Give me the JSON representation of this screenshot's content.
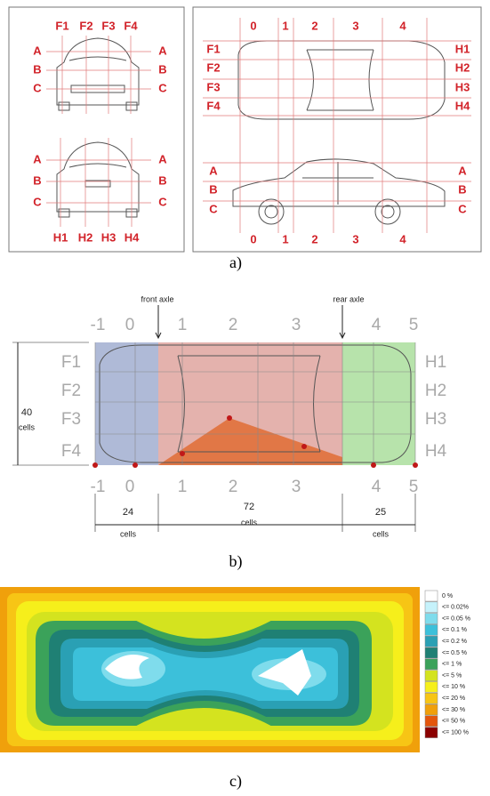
{
  "panel_a": {
    "front_view": {
      "columns": [
        "F1",
        "F2",
        "F3",
        "F4"
      ],
      "rows": [
        "A",
        "B",
        "C"
      ]
    },
    "rear_view": {
      "columns": [
        "H1",
        "H2",
        "H3",
        "H4"
      ],
      "rows": [
        "A",
        "B",
        "C"
      ]
    },
    "top_view": {
      "columns": [
        "0",
        "1",
        "2",
        "3",
        "4"
      ],
      "rows_left": [
        "F1",
        "F2",
        "F3",
        "F4"
      ],
      "rows_right": [
        "H1",
        "H2",
        "H3",
        "H4"
      ]
    },
    "side_view": {
      "columns": [
        "0",
        "1",
        "2",
        "3",
        "4"
      ],
      "rows": [
        "A",
        "B",
        "C"
      ]
    },
    "caption": "a)"
  },
  "panel_b": {
    "front_label": "front axle",
    "rear_label": "rear axle",
    "columns": [
      "-1",
      "0",
      "1",
      "2",
      "3",
      "4",
      "5"
    ],
    "rows_left": [
      "F1",
      "F2",
      "F3",
      "F4"
    ],
    "rows_right": [
      "H1",
      "H2",
      "H3",
      "H4"
    ],
    "height": {
      "count": "40",
      "unit": "cells"
    },
    "widths": [
      {
        "count": "24",
        "unit": "cells"
      },
      {
        "count": "72",
        "unit": "cells"
      },
      {
        "count": "25",
        "unit": "cells"
      }
    ],
    "caption": "b)"
  },
  "panel_c": {
    "legend": [
      {
        "label": "0 %",
        "color": "#ffffff"
      },
      {
        "label": "<= 0.02%",
        "color": "#c6f2fb"
      },
      {
        "label": "<= 0.05 %",
        "color": "#7fdcec"
      },
      {
        "label": "<= 0.1 %",
        "color": "#3cc0da"
      },
      {
        "label": "<= 0.2 %",
        "color": "#2aa0b4"
      },
      {
        "label": "<= 0.5 %",
        "color": "#1f8074"
      },
      {
        "label": "<= 1 %",
        "color": "#3ba25a"
      },
      {
        "label": "<= 5 %",
        "color": "#d4e31f"
      },
      {
        "label": "<= 10 %",
        "color": "#f6ef1b"
      },
      {
        "label": "<= 20 %",
        "color": "#f7c515"
      },
      {
        "label": "<= 30 %",
        "color": "#f0a00b"
      },
      {
        "label": "<= 50 %",
        "color": "#e4560d"
      },
      {
        "label": "<= 100 %",
        "color": "#8b0000"
      }
    ],
    "caption": "c)"
  }
}
